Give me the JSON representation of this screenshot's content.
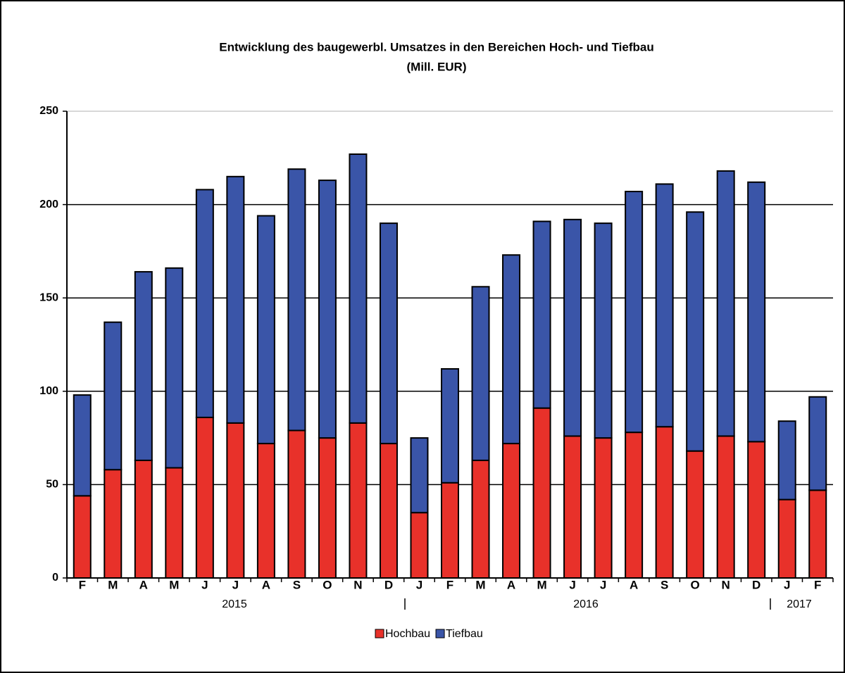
{
  "chart_data": {
    "type": "stacked_bar",
    "title": "Entwicklung des baugewerbl. Umsatzes  in den Bereichen Hoch- und Tiefbau",
    "subtitle": "(Mill. EUR)",
    "categories": [
      "F",
      "M",
      "A",
      "M",
      "J",
      "J",
      "A",
      "S",
      "O",
      "N",
      "D",
      "J",
      "F",
      "M",
      "A",
      "M",
      "J",
      "J",
      "A",
      "S",
      "O",
      "N",
      "D",
      "J",
      "F"
    ],
    "year_labels": [
      "2015",
      "2016",
      "2017"
    ],
    "series": [
      {
        "name": "Hochbau",
        "color": "#e8312a",
        "values": [
          44,
          58,
          63,
          59,
          86,
          83,
          72,
          79,
          75,
          83,
          72,
          35,
          51,
          63,
          72,
          91,
          76,
          75,
          78,
          81,
          68,
          76,
          73,
          42,
          47
        ]
      },
      {
        "name": "Tiefbau",
        "color": "#3a55a8",
        "values": [
          54,
          79,
          101,
          107,
          122,
          132,
          122,
          140,
          138,
          144,
          118,
          40,
          61,
          93,
          101,
          100,
          116,
          115,
          129,
          130,
          128,
          142,
          139,
          42,
          50
        ]
      }
    ],
    "ylim": [
      0,
      250
    ],
    "yticks": [
      0,
      50,
      100,
      150,
      200,
      250
    ],
    "grid": true,
    "legend": "bottom"
  }
}
